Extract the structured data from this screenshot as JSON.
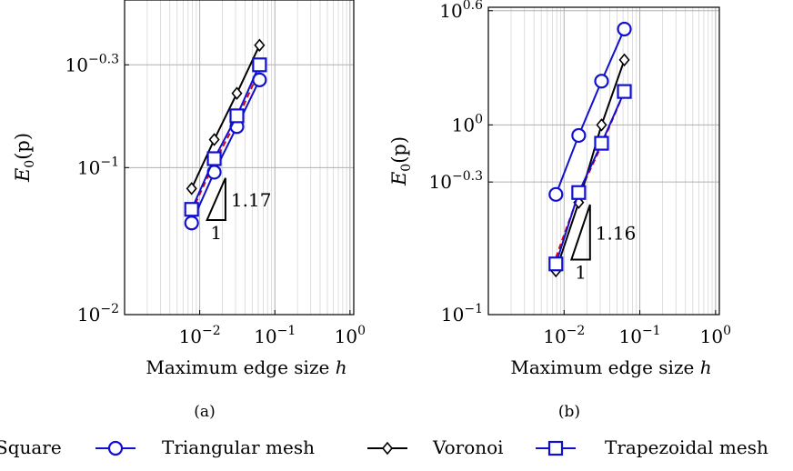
{
  "chart_data": [
    {
      "type": "line",
      "panel_label": "(a)",
      "xlabel": "Maximum edge size h",
      "ylabel": "E0(p)",
      "xscale": "log",
      "yscale": "log",
      "xlim": [
        0.001,
        1
      ],
      "ylim": [
        0.01,
        1
      ],
      "grid": true,
      "xticks": [
        {
          "value": 0.01,
          "base": "10",
          "exp": "−2"
        },
        {
          "value": 0.1,
          "base": "10",
          "exp": "−1"
        },
        {
          "value": 1,
          "base": "10",
          "exp": "0"
        }
      ],
      "yticks": [
        {
          "value": 0.01,
          "base": "10",
          "exp": "−2"
        },
        {
          "value": 0.1,
          "base": "10",
          "exp": "−1"
        },
        {
          "value": 0.5,
          "base": "10",
          "exp": "−0.3"
        }
      ],
      "slope_triangle": {
        "slope_label": "1.17",
        "run_label": "1",
        "x0": 0.0125,
        "x1": 0.022,
        "y0": 0.044,
        "y1": 0.085
      },
      "series": [
        {
          "name": "Square",
          "marker": "none",
          "color": "#e00000",
          "dashed": true,
          "x": [
            0.0078,
            0.0156,
            0.03125,
            0.0625
          ],
          "y": [
            0.05,
            0.108,
            0.21,
            0.46
          ]
        },
        {
          "name": "Triangular mesh",
          "marker": "circle",
          "color": "#1010d0",
          "x": [
            0.0078,
            0.0156,
            0.03125,
            0.0625
          ],
          "y": [
            0.042,
            0.093,
            0.19,
            0.395
          ]
        },
        {
          "name": "Voronoi",
          "marker": "diamond",
          "color": "#000000",
          "x": [
            0.0078,
            0.0156,
            0.03125,
            0.0625
          ],
          "y": [
            0.072,
            0.155,
            0.32,
            0.68
          ]
        },
        {
          "name": "Trapezoidal mesh",
          "marker": "square",
          "color": "#1010d0",
          "x": [
            0.0078,
            0.0156,
            0.03125,
            0.0625
          ],
          "y": [
            0.052,
            0.115,
            0.225,
            0.5
          ]
        }
      ]
    },
    {
      "type": "line",
      "panel_label": "(b)",
      "xlabel": "Maximum edge size h",
      "ylabel": "E0(p)",
      "xscale": "log",
      "yscale": "log",
      "xlim": [
        0.001,
        1
      ],
      "ylim": [
        0.1,
        4
      ],
      "grid": true,
      "xticks": [
        {
          "value": 0.01,
          "base": "10",
          "exp": "−2"
        },
        {
          "value": 0.1,
          "base": "10",
          "exp": "−1"
        },
        {
          "value": 1,
          "base": "10",
          "exp": "0"
        }
      ],
      "yticks": [
        {
          "value": 0.1,
          "base": "10",
          "exp": "−1"
        },
        {
          "value": 0.5,
          "base": "10",
          "exp": "−0.3"
        },
        {
          "value": 1,
          "base": "10",
          "exp": "0"
        },
        {
          "value": 4,
          "base": "10",
          "exp": "0.6"
        }
      ],
      "slope_triangle": {
        "slope_label": "1.16",
        "run_label": "1",
        "x0": 0.0125,
        "x1": 0.022,
        "y0": 0.195,
        "y1": 0.38
      },
      "series": [
        {
          "name": "Square",
          "marker": "none",
          "color": "#e00000",
          "dashed": true,
          "x": [
            0.0078,
            0.0156,
            0.03125,
            0.0625
          ],
          "y": [
            0.2,
            0.43,
            0.78,
            1.5
          ]
        },
        {
          "name": "Triangular mesh",
          "marker": "circle",
          "color": "#1010d0",
          "x": [
            0.0078,
            0.0156,
            0.03125,
            0.0625
          ],
          "y": [
            0.43,
            0.88,
            1.7,
            3.2
          ]
        },
        {
          "name": "Voronoi",
          "marker": "diamond",
          "color": "#000000",
          "x": [
            0.0078,
            0.0156,
            0.03125,
            0.0625
          ],
          "y": [
            0.17,
            0.39,
            1.0,
            2.2
          ]
        },
        {
          "name": "Trapezoidal mesh",
          "marker": "square",
          "color": "#1010d0",
          "x": [
            0.0078,
            0.0156,
            0.03125,
            0.0625
          ],
          "y": [
            0.185,
            0.44,
            0.8,
            1.5
          ]
        }
      ]
    }
  ],
  "legend": {
    "position": "bottom",
    "entries": [
      {
        "label": "Square"
      },
      {
        "label": "Triangular mesh"
      },
      {
        "label": "Voronoi"
      },
      {
        "label": "Trapezoidal mesh"
      }
    ]
  }
}
